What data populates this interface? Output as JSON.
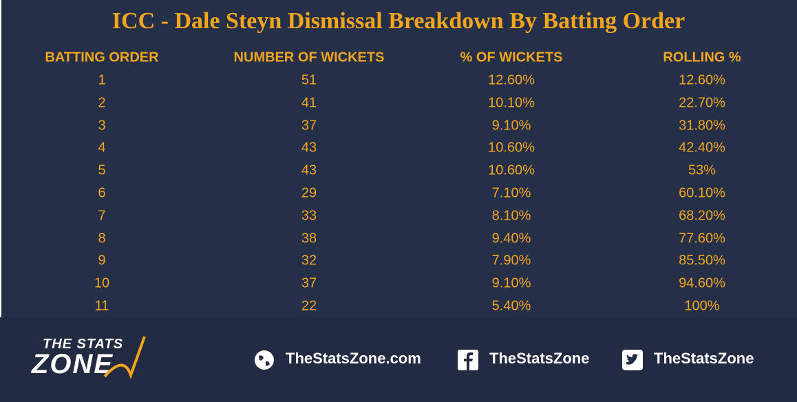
{
  "header": {
    "title": "ICC - Dale Steyn Dismissal Breakdown By Batting Order"
  },
  "table": {
    "columns": [
      "BATTING ORDER",
      "NUMBER OF WICKETS",
      "% OF WICKETS",
      "ROLLING %"
    ],
    "rows": [
      [
        1,
        51,
        "12.60%",
        "12.60%"
      ],
      [
        2,
        41,
        "10.10%",
        "22.70%"
      ],
      [
        3,
        37,
        "9.10%",
        "31.80%"
      ],
      [
        4,
        43,
        "10.60%",
        "42.40%"
      ],
      [
        5,
        43,
        "10.60%",
        "53%"
      ],
      [
        6,
        29,
        "7.10%",
        "60.10%"
      ],
      [
        7,
        33,
        "8.10%",
        "68.20%"
      ],
      [
        8,
        38,
        "9.40%",
        "77.60%"
      ],
      [
        9,
        32,
        "7.90%",
        "85.50%"
      ],
      [
        10,
        37,
        "9.10%",
        "94.60%"
      ],
      [
        11,
        22,
        "5.40%",
        "100%"
      ]
    ]
  },
  "footer": {
    "logo_top": "THE STATS",
    "logo_bottom": "ZONE",
    "links": [
      "TheStatsZone.com",
      "TheStatsZone",
      "TheStatsZone"
    ]
  }
}
